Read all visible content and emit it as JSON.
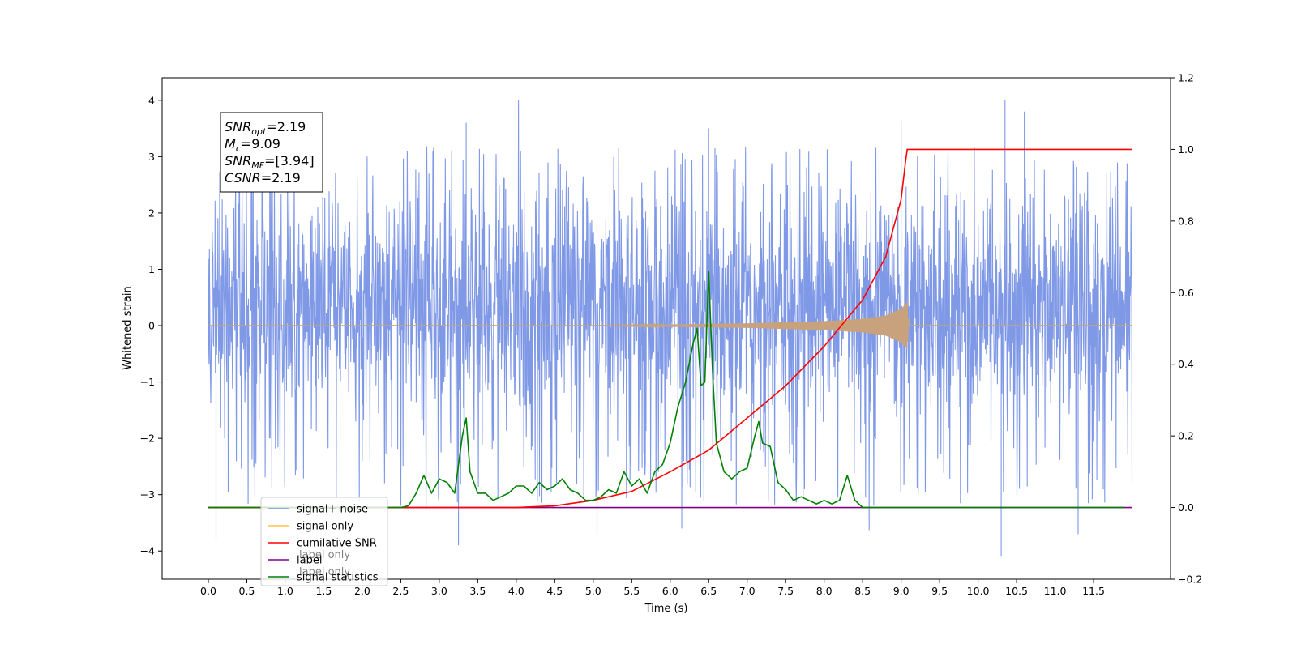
{
  "chart_data": {
    "type": "line",
    "xlabel": "Time (s)",
    "ylabel": "Whitened strain",
    "xlim": [
      -0.6,
      12.5
    ],
    "ylim": [
      -4.5,
      4.4
    ],
    "y2lim": [
      -0.2,
      1.2
    ],
    "x_ticks": [
      0.0,
      0.5,
      1.0,
      1.5,
      2.0,
      2.5,
      3.0,
      3.5,
      4.0,
      4.5,
      5.0,
      5.5,
      6.0,
      6.5,
      7.0,
      7.5,
      8.0,
      8.5,
      9.0,
      9.5,
      10.0,
      10.5,
      11.0,
      11.5
    ],
    "x_tick_labels": [
      "0.0",
      "0.5",
      "1.0",
      "1.5",
      "2.0",
      "2.5",
      "3.0",
      "3.5",
      "4.0",
      "4.5",
      "5.0",
      "5.5",
      "6.0",
      "6.5",
      "7.0",
      "7.5",
      "8.0",
      "8.5",
      "9.0",
      "9.5",
      "10.0",
      "10.5",
      "11.0",
      "11.5"
    ],
    "y_ticks": [
      -4,
      -3,
      -2,
      -1,
      0,
      1,
      2,
      3,
      4
    ],
    "y_tick_labels": [
      "−4",
      "−3",
      "−2",
      "−1",
      "0",
      "1",
      "2",
      "3",
      "4"
    ],
    "y2_ticks": [
      -0.2,
      0.0,
      0.2,
      0.4,
      0.6,
      0.8,
      1.0,
      1.2
    ],
    "y2_tick_labels": [
      "−0.2",
      "0.0",
      "0.2",
      "0.4",
      "0.6",
      "0.8",
      "1.0",
      "1.2"
    ],
    "annotation": [
      {
        "symbol": "SNR",
        "sub": "opt",
        "value": "=2.19"
      },
      {
        "symbol": "M",
        "sub": "c",
        "value": "=9.09"
      },
      {
        "symbol": "SNR",
        "sub": "MF",
        "value": "=[3.94]"
      },
      {
        "symbol": "CSNR",
        "sub": "",
        "value": "=2.19"
      }
    ],
    "legend": {
      "placement": "lower-left",
      "entries": [
        {
          "label": "signal+ noise",
          "color": "#7994e6"
        },
        {
          "label": "signal only",
          "color": "#ffc04d"
        },
        {
          "label": "cumilative SNR",
          "color": "#ff0000"
        },
        {
          "label": "label",
          "color": "#800080"
        },
        {
          "label": "signal statistics",
          "color": "#008000"
        }
      ],
      "obscured_text": [
        "label only",
        "label only"
      ]
    },
    "series": [
      {
        "name": "signal+ noise",
        "axis": "left",
        "color": "#7994e6",
        "t_range": [
          0.0,
          12.0
        ],
        "envelope": {
          "lower": -2.0,
          "upper": 2.7,
          "spike_max": 4.0,
          "spike_min": -4.1
        },
        "notable_spikes": [
          {
            "x": 0.1,
            "y": -3.8
          },
          {
            "x": 3.35,
            "y": 3.6
          },
          {
            "x": 3.25,
            "y": -3.9
          },
          {
            "x": 5.05,
            "y": -3.7
          },
          {
            "x": 6.5,
            "y": 3.5
          },
          {
            "x": 6.15,
            "y": -3.6
          },
          {
            "x": 9.0,
            "y": 3.65
          },
          {
            "x": 10.3,
            "y": -4.1
          },
          {
            "x": 10.35,
            "y": 4.0
          },
          {
            "x": 10.6,
            "y": 3.8
          },
          {
            "x": 11.3,
            "y": -3.7
          }
        ]
      },
      {
        "name": "signal only",
        "axis": "left",
        "color": "#c8a27c",
        "x": [
          0.0,
          5.0,
          6.0,
          7.0,
          7.5,
          8.0,
          8.5,
          8.8,
          9.0,
          9.08,
          9.1,
          12.0
        ],
        "amplitude": [
          0.0,
          0.0,
          0.02,
          0.04,
          0.06,
          0.08,
          0.12,
          0.18,
          0.3,
          0.42,
          0.0,
          0.0
        ]
      },
      {
        "name": "cumilative SNR",
        "axis": "right",
        "color": "#ff0000",
        "x": [
          0.0,
          4.0,
          4.5,
          5.0,
          5.5,
          6.0,
          6.5,
          7.0,
          7.5,
          8.0,
          8.5,
          8.8,
          9.0,
          9.06,
          9.08,
          12.0
        ],
        "y": [
          0.0,
          0.0,
          0.005,
          0.02,
          0.045,
          0.1,
          0.16,
          0.25,
          0.34,
          0.45,
          0.58,
          0.7,
          0.86,
          0.97,
          1.0,
          1.0
        ]
      },
      {
        "name": "label",
        "axis": "right",
        "color": "#800080",
        "x": [
          0.0,
          12.0
        ],
        "y": [
          0.0,
          0.0
        ]
      },
      {
        "name": "signal statistics",
        "axis": "right",
        "color": "#008000",
        "x": [
          0.0,
          2.5,
          2.6,
          2.7,
          2.8,
          2.9,
          3.0,
          3.1,
          3.2,
          3.3,
          3.35,
          3.4,
          3.5,
          3.6,
          3.7,
          3.8,
          3.9,
          4.0,
          4.1,
          4.2,
          4.3,
          4.4,
          4.5,
          4.6,
          4.7,
          4.8,
          4.9,
          5.0,
          5.1,
          5.2,
          5.3,
          5.4,
          5.5,
          5.6,
          5.7,
          5.8,
          5.9,
          6.0,
          6.1,
          6.2,
          6.3,
          6.35,
          6.4,
          6.45,
          6.5,
          6.55,
          6.6,
          6.65,
          6.7,
          6.8,
          6.9,
          7.0,
          7.1,
          7.15,
          7.2,
          7.3,
          7.4,
          7.5,
          7.6,
          7.7,
          7.8,
          7.9,
          8.0,
          8.1,
          8.2,
          8.3,
          8.4,
          8.5,
          8.6,
          9.0,
          10.0,
          11.0,
          11.9
        ],
        "y": [
          0.0,
          0.0,
          0.005,
          0.04,
          0.09,
          0.04,
          0.08,
          0.07,
          0.04,
          0.2,
          0.25,
          0.1,
          0.04,
          0.04,
          0.02,
          0.03,
          0.04,
          0.06,
          0.06,
          0.04,
          0.07,
          0.05,
          0.06,
          0.08,
          0.05,
          0.04,
          0.02,
          0.02,
          0.03,
          0.05,
          0.04,
          0.1,
          0.06,
          0.08,
          0.04,
          0.1,
          0.12,
          0.18,
          0.28,
          0.35,
          0.46,
          0.5,
          0.34,
          0.35,
          0.66,
          0.38,
          0.18,
          0.14,
          0.1,
          0.08,
          0.1,
          0.11,
          0.2,
          0.24,
          0.18,
          0.17,
          0.07,
          0.05,
          0.02,
          0.03,
          0.02,
          0.01,
          0.02,
          0.01,
          0.02,
          0.09,
          0.02,
          0.0,
          0.0,
          0.0,
          0.0,
          0.0,
          0.0
        ]
      }
    ]
  }
}
